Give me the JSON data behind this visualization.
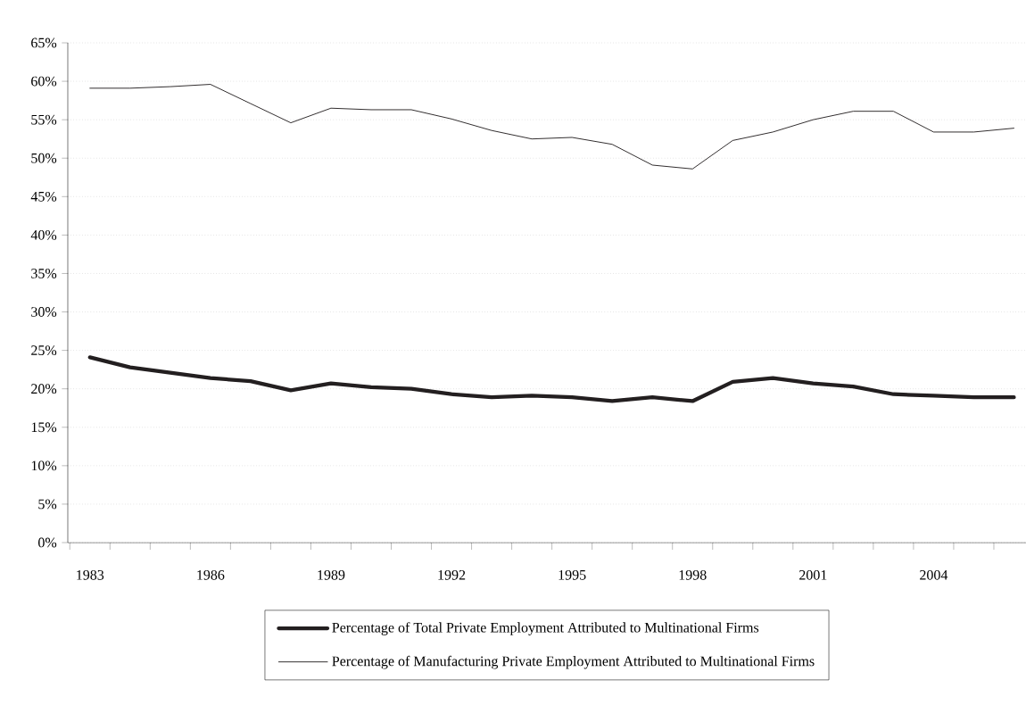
{
  "chart_data": {
    "type": "line",
    "categories": [
      "1983",
      null,
      null,
      "1986",
      null,
      null,
      "1989",
      null,
      null,
      "1992",
      null,
      null,
      "1995",
      null,
      null,
      "1998",
      null,
      null,
      "2001",
      null,
      null,
      "2004",
      null,
      null
    ],
    "series": [
      {
        "name": "Percentage of Total Private Employment Attributed to Multinational Firms",
        "color": "#231f20",
        "values": [
          24.1,
          22.8,
          22.1,
          21.4,
          21.0,
          19.8,
          20.7,
          20.2,
          20.0,
          19.3,
          18.9,
          19.1,
          18.9,
          18.4,
          18.9,
          18.4,
          20.9,
          21.4,
          20.7,
          20.3,
          19.3,
          19.1,
          18.9,
          18.9
        ]
      },
      {
        "name": "Percentage of Manufacturing Private Employment Attributed to Multinational Firms",
        "color": "#231f20",
        "values": [
          59.1,
          59.1,
          59.3,
          59.6,
          57.1,
          54.6,
          56.5,
          56.3,
          56.3,
          55.1,
          53.6,
          52.5,
          52.7,
          51.8,
          49.1,
          48.6,
          52.3,
          53.4,
          55.0,
          56.1,
          56.1,
          53.4,
          53.4,
          53.9
        ]
      }
    ],
    "ylim": [
      0,
      65
    ],
    "yticks": [
      {
        "value": 0,
        "label": "0%"
      },
      {
        "value": 5,
        "label": "5%"
      },
      {
        "value": 10,
        "label": "10%"
      },
      {
        "value": 15,
        "label": "15%"
      },
      {
        "value": 20,
        "label": "20%"
      },
      {
        "value": 25,
        "label": "25%"
      },
      {
        "value": 30,
        "label": "30%"
      },
      {
        "value": 35,
        "label": "35%"
      },
      {
        "value": 40,
        "label": "40%"
      },
      {
        "value": 45,
        "label": "45%"
      },
      {
        "value": 50,
        "label": "50%"
      },
      {
        "value": 55,
        "label": "55%"
      },
      {
        "value": 60,
        "label": "60%"
      },
      {
        "value": 65,
        "label": "65%"
      }
    ],
    "grid": "y",
    "legend": "bottom",
    "marker": "none",
    "line_style": "solid"
  }
}
